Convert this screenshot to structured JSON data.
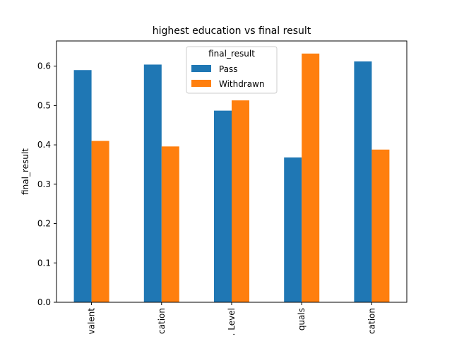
{
  "chart_data": {
    "type": "bar",
    "title": "highest education vs final result",
    "xlabel": "",
    "ylabel": "final_result",
    "categories": [
      "valent",
      "cation",
      ". Level",
      "quals",
      "cation"
    ],
    "series": [
      {
        "name": "Pass",
        "color": "#1f77b4",
        "values": [
          0.59,
          0.604,
          0.487,
          0.368,
          0.612
        ]
      },
      {
        "name": "Withdrawn",
        "color": "#ff7f0e",
        "values": [
          0.41,
          0.396,
          0.513,
          0.632,
          0.388
        ]
      }
    ],
    "ylim": [
      0,
      0.664
    ],
    "yticks": [
      "0.0",
      "0.1",
      "0.2",
      "0.3",
      "0.4",
      "0.5",
      "0.6"
    ],
    "legend": {
      "title": "final_result",
      "placement": "top-center"
    },
    "grid": false
  }
}
